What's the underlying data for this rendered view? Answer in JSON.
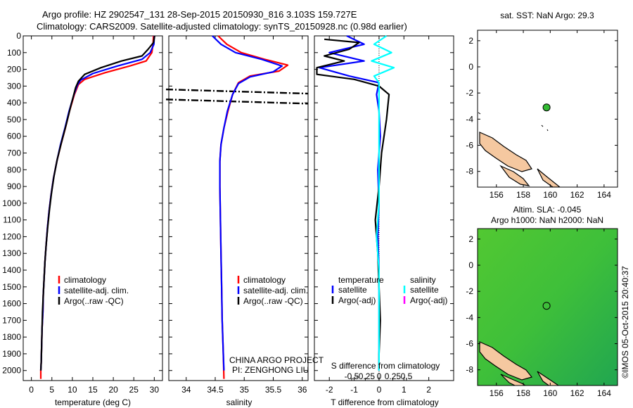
{
  "header": {
    "line1": "Argo profile: HZ 2902547_131 28-Sep-2015 20150930_816 3.103S 159.727E",
    "line2": "Climatology: CARS2009. Satellite-adjusted climatology: synTS_20150928.nc (0.98d earlier)"
  },
  "credit": {
    "line1": "CHINA ARGO PROJECT",
    "line2": "PI: ZENGHONG LIU"
  },
  "side_label": "©IMOS 05-Oct-2015 20:40:37",
  "colors": {
    "climatology": "#ff0000",
    "satellite": "#0000ff",
    "argo": "#000000",
    "salinity_satellite": "#00ffff",
    "salinity_argo": "#ff00ff",
    "float_marker": "#33bb33",
    "land": "#f5c8a0"
  },
  "chart_data": [
    {
      "type": "line",
      "xlabel": "temperature (deg C)",
      "xlim": [
        -2,
        32
      ],
      "xticks": [
        0,
        5,
        10,
        15,
        20,
        25,
        30
      ],
      "ylim": [
        0,
        2060
      ],
      "yticks": [
        0,
        100,
        200,
        300,
        400,
        500,
        600,
        700,
        800,
        900,
        1000,
        1100,
        1200,
        1300,
        1400,
        1500,
        1600,
        1700,
        1800,
        1900,
        2000
      ],
      "legend": [
        "climatology",
        "satellite-adj. clim.",
        "Argo(..raw -QC)"
      ],
      "series": [
        {
          "name": "climatology",
          "color": "#ff0000",
          "points": [
            [
              29.8,
              0
            ],
            [
              29.7,
              50
            ],
            [
              29.4,
              100
            ],
            [
              28,
              150
            ],
            [
              24,
              180
            ],
            [
              18,
              220
            ],
            [
              13,
              260
            ],
            [
              11.5,
              290
            ],
            [
              10.5,
              350
            ],
            [
              9.3,
              450
            ],
            [
              8.3,
              550
            ],
            [
              7.2,
              650
            ],
            [
              6.2,
              750
            ],
            [
              5.4,
              850
            ],
            [
              4.8,
              950
            ],
            [
              4.3,
              1050
            ],
            [
              3.9,
              1150
            ],
            [
              3.6,
              1250
            ],
            [
              3.3,
              1350
            ],
            [
              3.1,
              1450
            ],
            [
              2.9,
              1550
            ],
            [
              2.8,
              1650
            ],
            [
              2.6,
              1750
            ],
            [
              2.5,
              1850
            ],
            [
              2.4,
              1950
            ],
            [
              2.3,
              2000
            ],
            [
              2.3,
              2050
            ]
          ]
        },
        {
          "name": "satellite-adj. clim.",
          "color": "#0000ff",
          "points": [
            [
              30,
              0
            ],
            [
              29.9,
              50
            ],
            [
              29,
              100
            ],
            [
              27,
              140
            ],
            [
              21,
              180
            ],
            [
              15,
              225
            ],
            [
              12,
              265
            ],
            [
              11.2,
              295
            ],
            [
              10.4,
              350
            ],
            [
              9.2,
              450
            ],
            [
              8.2,
              550
            ],
            [
              7.1,
              650
            ],
            [
              6.2,
              750
            ],
            [
              5.4,
              850
            ],
            [
              4.8,
              950
            ],
            [
              4.3,
              1050
            ],
            [
              3.9,
              1150
            ],
            [
              3.6,
              1250
            ],
            [
              3.3,
              1350
            ],
            [
              3.1,
              1450
            ],
            [
              2.9,
              1550
            ],
            [
              2.8,
              1650
            ],
            [
              2.6,
              1750
            ],
            [
              2.5,
              1850
            ],
            [
              2.4,
              1950
            ],
            [
              2.3,
              2000
            ]
          ]
        },
        {
          "name": "Argo(..raw -QC)",
          "color": "#000000",
          "points": [
            [
              30.1,
              0
            ],
            [
              29.8,
              40
            ],
            [
              28.5,
              80
            ],
            [
              27,
              120
            ],
            [
              22,
              150
            ],
            [
              17,
              190
            ],
            [
              13,
              230
            ],
            [
              11.5,
              270
            ],
            [
              10.8,
              310
            ],
            [
              9.6,
              420
            ],
            [
              8.5,
              530
            ],
            [
              7.3,
              640
            ],
            [
              6.3,
              740
            ],
            [
              5.5,
              840
            ],
            [
              4.9,
              940
            ],
            [
              4.4,
              1040
            ],
            [
              4,
              1140
            ],
            [
              3.6,
              1250
            ],
            [
              3.3,
              1350
            ],
            [
              3.1,
              1450
            ],
            [
              2.9,
              1550
            ],
            [
              2.7,
              1650
            ],
            [
              2.6,
              1750
            ],
            [
              2.5,
              1850
            ],
            [
              2.4,
              1950
            ],
            [
              2.3,
              2000
            ]
          ]
        }
      ]
    },
    {
      "type": "line",
      "xlabel": "salinity",
      "xlim": [
        33.7,
        36.1
      ],
      "xticks": [
        34,
        34.5,
        35,
        35.5,
        36
      ],
      "xticklabels": [
        "34",
        "34.5",
        "35",
        "35.5",
        "36"
      ],
      "ylim": [
        0,
        2060
      ],
      "legend": [
        "climatology",
        "satellite-adj. clim.",
        "Argo(..raw -QC)"
      ],
      "series": [
        {
          "name": "climatology",
          "color": "#ff0000",
          "points": [
            [
              34.55,
              0
            ],
            [
              34.7,
              50
            ],
            [
              34.95,
              100
            ],
            [
              35.35,
              140
            ],
            [
              35.75,
              175
            ],
            [
              35.6,
              210
            ],
            [
              35.1,
              240
            ],
            [
              34.9,
              280
            ],
            [
              34.8,
              350
            ],
            [
              34.72,
              450
            ],
            [
              34.65,
              550
            ],
            [
              34.6,
              650
            ],
            [
              34.58,
              750
            ],
            [
              34.58,
              900
            ],
            [
              34.59,
              1100
            ],
            [
              34.6,
              1300
            ],
            [
              34.61,
              1500
            ],
            [
              34.62,
              1700
            ],
            [
              34.64,
              1900
            ],
            [
              34.65,
              2050
            ]
          ]
        },
        {
          "name": "satellite-adj. clim.",
          "color": "#0000ff",
          "points": [
            [
              34.45,
              0
            ],
            [
              34.6,
              50
            ],
            [
              34.85,
              100
            ],
            [
              35.3,
              140
            ],
            [
              35.65,
              180
            ],
            [
              35.5,
              215
            ],
            [
              35.1,
              245
            ],
            [
              34.9,
              285
            ],
            [
              34.8,
              350
            ],
            [
              34.71,
              450
            ],
            [
              34.65,
              550
            ],
            [
              34.6,
              650
            ],
            [
              34.58,
              750
            ],
            [
              34.58,
              900
            ],
            [
              34.59,
              1100
            ],
            [
              34.6,
              1300
            ],
            [
              34.61,
              1500
            ],
            [
              34.62,
              1700
            ],
            [
              34.64,
              1900
            ],
            [
              34.65,
              2000
            ]
          ]
        }
      ],
      "hlines": [
        345,
        405
      ]
    },
    {
      "type": "line",
      "xlabel": "T difference from climatology",
      "x2label": "S difference from climatology",
      "xlim": [
        -2.6,
        3
      ],
      "xticks": [
        -2,
        -1,
        0,
        1,
        2
      ],
      "x2ticks": [
        -0.5,
        -0.25,
        0,
        0.25,
        0.5
      ],
      "x2ticklabels": [
        "-0.5",
        "-0.25",
        "0",
        "0.25",
        "0.5"
      ],
      "ylim": [
        0,
        2060
      ],
      "legend_t": {
        "title": "temperature",
        "items": [
          "satellite",
          "Argo(-adj)"
        ]
      },
      "legend_s": {
        "title": "salinity",
        "items": [
          "satellite",
          "Argo(-adj)"
        ]
      },
      "series": [
        {
          "name": "satellite",
          "color": "#0000ff",
          "points": [
            [
              -1.3,
              0
            ],
            [
              -0.6,
              50
            ],
            [
              -2,
              100
            ],
            [
              -0.6,
              150
            ],
            [
              -2.4,
              190
            ],
            [
              -1.2,
              240
            ],
            [
              0,
              280
            ],
            [
              -0.1,
              350
            ],
            [
              0,
              450
            ],
            [
              0.05,
              600
            ],
            [
              -0.05,
              800
            ],
            [
              0,
              1000
            ],
            [
              -0.05,
              1200
            ],
            [
              0,
              1400
            ],
            [
              0,
              1600
            ],
            [
              0,
              1800
            ],
            [
              0,
              2000
            ]
          ]
        },
        {
          "name": "Argo(-adj)",
          "color": "#000000",
          "points": [
            [
              -2.2,
              20
            ],
            [
              -0.8,
              40
            ],
            [
              -1.2,
              80
            ],
            [
              -2.2,
              120
            ],
            [
              -1.4,
              150
            ],
            [
              -2.5,
              190
            ],
            [
              -2.5,
              230
            ],
            [
              -1,
              260
            ],
            [
              0,
              300
            ],
            [
              0.4,
              350
            ],
            [
              0.3,
              500
            ],
            [
              0.1,
              700
            ],
            [
              0,
              900
            ],
            [
              -0.15,
              1100
            ],
            [
              -0.05,
              1300
            ],
            [
              0,
              1500
            ],
            [
              0.05,
              1700
            ],
            [
              0,
              1900
            ],
            [
              0,
              2000
            ]
          ]
        },
        {
          "name": "salinity satellite",
          "color": "#00ffff",
          "points": [
            [
              0.3,
              0
            ],
            [
              -0.2,
              50
            ],
            [
              0.5,
              100
            ],
            [
              -0.3,
              150
            ],
            [
              0.6,
              190
            ],
            [
              -0.2,
              240
            ],
            [
              0,
              280
            ],
            [
              0,
              400
            ],
            [
              0,
              600
            ],
            [
              0,
              800
            ],
            [
              0,
              1000
            ],
            [
              -0.1,
              1200
            ],
            [
              0,
              1400
            ],
            [
              0,
              1600
            ],
            [
              0,
              1800
            ],
            [
              0,
              2000
            ]
          ]
        }
      ]
    },
    {
      "type": "scatter",
      "title": "sat. SST: NaN Argo: 29.3",
      "xlim": [
        154.6,
        165
      ],
      "xticks": [
        156,
        158,
        160,
        162,
        164
      ],
      "ylim": [
        -9.2,
        2.8
      ],
      "yticks": [
        2,
        0,
        -2,
        -4,
        -6,
        -8
      ],
      "float": {
        "lon": 159.727,
        "lat": -3.103
      }
    },
    {
      "type": "heatmap",
      "title_line1": "Altim. SLA: -0.045",
      "title_line2": "Argo h1000: NaN h2000: NaN",
      "xlim": [
        154.6,
        165
      ],
      "xticks": [
        156,
        158,
        160,
        162,
        164
      ],
      "ylim": [
        -9.2,
        2.8
      ],
      "yticks": [
        2,
        0,
        -2,
        -4,
        -6,
        -8
      ],
      "float": {
        "lon": 159.727,
        "lat": -3.103
      }
    }
  ]
}
